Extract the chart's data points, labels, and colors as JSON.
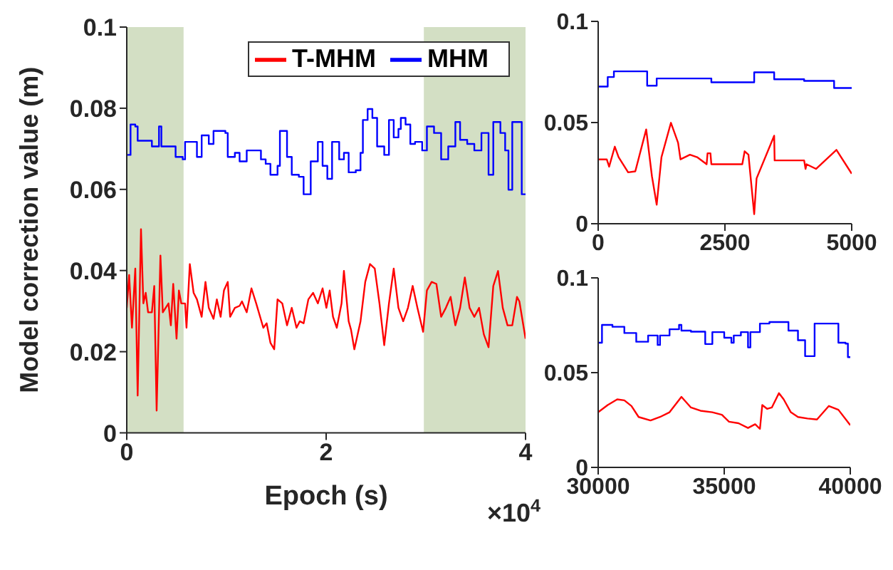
{
  "chart_data": [
    {
      "type": "line",
      "xlabel": "Epoch (s)",
      "ylabel": "Model correction value (m)",
      "xlim": [
        0,
        4
      ],
      "xticks": [
        0,
        2,
        4
      ],
      "ylim": [
        0,
        0.1
      ],
      "yticks": [
        0,
        0.02,
        0.04,
        0.06,
        0.08,
        0.1
      ],
      "legend": "top right",
      "annotations": [
        "×10$^{4}$"
      ],
      "bands": [
        {
          "axis": "x",
          "from": 0,
          "to": 0.57,
          "label": null,
          "color": "#d3dfc4"
        },
        {
          "axis": "x",
          "from": 2.98,
          "to": 4,
          "label": null,
          "color": "#d3dfc4"
        }
      ],
      "series": [
        {
          "name": "T-MHM",
          "type": "line",
          "color": "#ff0000",
          "x": [
            0,
            0.0238,
            0.0523,
            0.0856,
            0.1094,
            0.1427,
            0.1665,
            0.1902,
            0.214,
            0.2521,
            0.2758,
            0.2996,
            0.3377,
            0.3615,
            0.4185,
            0.4423,
            0.4661,
            0.4994,
            0.5232,
            0.5469,
            0.585,
            0.5993,
            0.6325,
            0.6706,
            0.7039,
            0.7514,
            0.7895,
            0.8228,
            0.8703,
            0.9036,
            0.9417,
            0.975,
            1.013,
            1.0368,
            1.0844,
            1.1319,
            1.1557,
            1.2033,
            1.2508,
            1.2984,
            1.3697,
            1.403,
            1.4411,
            1.4791,
            1.5124,
            1.56,
            1.6075,
            1.6551,
            1.7026,
            1.7359,
            1.774,
            1.8216,
            1.8691,
            1.9167,
            1.9642,
            2.0023,
            2.0355,
            2.0688,
            2.1069,
            2.1545,
            2.1783,
            2.2258,
            2.2496,
            2.2829,
            2.3447,
            2.3922,
            2.4398,
            2.4874,
            2.5349,
            2.5825,
            2.6301,
            2.6777,
            2.7252,
            2.7728,
            2.8204,
            2.8679,
            2.9155,
            2.9726,
            3.0106,
            3.0582,
            3.1058,
            3.1533,
            3.2008,
            3.2484,
            3.296,
            3.3436,
            3.3911,
            3.4387,
            3.4862,
            3.5338,
            3.5814,
            3.6289,
            3.6765,
            3.724,
            3.7716,
            3.8192,
            3.8668,
            3.9143,
            3.9381,
            4
          ],
          "values": [
            0.0308,
            0.0389,
            0.0259,
            0.0405,
            0.0092,
            0.0502,
            0.0319,
            0.0345,
            0.0297,
            0.0297,
            0.0362,
            0.0055,
            0.0437,
            0.0297,
            0.0319,
            0.0265,
            0.0367,
            0.0232,
            0.0351,
            0.0319,
            0.0319,
            0.0259,
            0.0416,
            0.0345,
            0.0329,
            0.0286,
            0.0372,
            0.0308,
            0.0281,
            0.0329,
            0.0286,
            0.0351,
            0.0372,
            0.0286,
            0.0308,
            0.0313,
            0.0324,
            0.0297,
            0.0356,
            0.0319,
            0.0259,
            0.027,
            0.0222,
            0.0206,
            0.0329,
            0.0319,
            0.0265,
            0.0308,
            0.0259,
            0.0275,
            0.027,
            0.0329,
            0.0345,
            0.0319,
            0.0356,
            0.0308,
            0.0351,
            0.0286,
            0.0259,
            0.0319,
            0.0399,
            0.0275,
            0.0254,
            0.0206,
            0.0275,
            0.0372,
            0.0416,
            0.0405,
            0.0319,
            0.0216,
            0.0319,
            0.0405,
            0.0308,
            0.0275,
            0.0308,
            0.0362,
            0.0308,
            0.0249,
            0.0351,
            0.0372,
            0.0367,
            0.0286,
            0.0308,
            0.0335,
            0.0265,
            0.0308,
            0.0383,
            0.0308,
            0.0286,
            0.0308,
            0.0243,
            0.0211,
            0.0362,
            0.0399,
            0.0308,
            0.0265,
            0.0265,
            0.0335,
            0.0324,
            0.0232
          ]
        },
        {
          "name": "MHM",
          "type": "step",
          "color": "#0000ff",
          "x": [
            0,
            0.038,
            0.0856,
            0.1094,
            0.1807,
            0.2521,
            0.3234,
            0.3472,
            0.4661,
            0.4899,
            0.5612,
            0.585,
            0.6563,
            0.7039,
            0.7514,
            0.8228,
            0.8703,
            0.9892,
            1.013,
            1.0844,
            1.1319,
            1.2033,
            1.2984,
            1.3459,
            1.3935,
            1.4411,
            1.5124,
            1.5362,
            1.6075,
            1.6551,
            1.7264,
            1.774,
            1.8453,
            1.9167,
            1.9642,
            2.0118,
            2.0593,
            2.1307,
            2.1783,
            2.2258,
            2.2972,
            2.3447,
            2.3685,
            2.4161,
            2.4636,
            2.5112,
            2.5825,
            2.6301,
            2.6777,
            2.7252,
            2.749,
            2.7966,
            2.8442,
            2.8917,
            2.9631,
            3.0106,
            3.082,
            3.1533,
            3.2247,
            3.296,
            3.3436,
            3.4149,
            3.4862,
            3.5576,
            3.6289,
            3.6765,
            3.7478,
            3.7954,
            3.8287,
            3.8668,
            3.9381,
            3.9619,
            4
          ],
          "values": [
            0.0685,
            0.076,
            0.0755,
            0.072,
            0.072,
            0.0706,
            0.0755,
            0.0706,
            0.0706,
            0.068,
            0.0674,
            0.0717,
            0.0717,
            0.068,
            0.0733,
            0.0712,
            0.0744,
            0.0739,
            0.068,
            0.069,
            0.0669,
            0.0696,
            0.0696,
            0.0674,
            0.0663,
            0.0636,
            0.0658,
            0.0744,
            0.068,
            0.0636,
            0.0631,
            0.0588,
            0.0669,
            0.0717,
            0.0658,
            0.0626,
            0.0717,
            0.0674,
            0.069,
            0.0642,
            0.0647,
            0.069,
            0.0771,
            0.0798,
            0.0776,
            0.0706,
            0.0685,
            0.0771,
            0.0728,
            0.0749,
            0.0776,
            0.076,
            0.0712,
            0.0717,
            0.0696,
            0.0755,
            0.0739,
            0.0674,
            0.0706,
            0.0766,
            0.0722,
            0.0712,
            0.0696,
            0.0739,
            0.0636,
            0.0766,
            0.0739,
            0.0696,
            0.0599,
            0.0766,
            0.0766,
            0.0588,
            0.0588
          ]
        }
      ]
    },
    {
      "type": "line",
      "xlim": [
        0,
        5000
      ],
      "xticks": [
        0,
        2500,
        5000
      ],
      "ylim": [
        0,
        0.1
      ],
      "yticks": [
        0,
        0.05,
        0.1
      ],
      "series": [
        {
          "type": "line",
          "color": "#ff0000",
          "x": [
            0,
            169,
            216,
            328,
            403,
            591,
            732,
            947,
            1060,
            1154,
            1248,
            1435,
            1576,
            1623,
            1810,
            1951,
            2139,
            2157,
            2214,
            2232,
            2842,
            2889,
            2964,
            3077,
            3124,
            3471,
            3480,
            4062,
            4090,
            4109,
            4296,
            4699,
            5000
          ],
          "values": [
            0.0318,
            0.0318,
            0.0282,
            0.0381,
            0.0329,
            0.0254,
            0.0259,
            0.0466,
            0.0235,
            0.0094,
            0.0329,
            0.0499,
            0.04,
            0.0318,
            0.0341,
            0.0329,
            0.0294,
            0.0348,
            0.0348,
            0.0294,
            0.0294,
            0.0358,
            0.0341,
            0.0047,
            0.0224,
            0.0435,
            0.0313,
            0.0313,
            0.0271,
            0.0294,
            0.0271,
            0.0365,
            0.0247
          ]
        },
        {
          "type": "step",
          "color": "#0000ff",
          "x": [
            0,
            188,
            310,
            966,
            1154,
            2232,
            3077,
            3471,
            4062,
            4653,
            5000
          ],
          "values": [
            0.0678,
            0.0725,
            0.0753,
            0.0682,
            0.0718,
            0.0699,
            0.0748,
            0.0714,
            0.0706,
            0.0671,
            0.0671
          ]
        }
      ]
    },
    {
      "type": "line",
      "xlim": [
        30000,
        40000
      ],
      "xticks": [
        30000,
        35000,
        40000
      ],
      "ylim": [
        0,
        0.1
      ],
      "yticks": [
        0,
        0.05,
        0.1
      ],
      "series": [
        {
          "type": "line",
          "color": "#ff0000",
          "x": [
            30000,
            30377,
            30755,
            31038,
            31321,
            31604,
            32076,
            32453,
            32831,
            33302,
            33680,
            34057,
            34529,
            34906,
            35189,
            35566,
            35944,
            36227,
            36416,
            36510,
            36699,
            36888,
            37170,
            37359,
            37642,
            37925,
            38302,
            38679,
            39151,
            39529,
            40000
          ],
          "values": [
            0.0291,
            0.0329,
            0.0359,
            0.0354,
            0.0324,
            0.0266,
            0.0248,
            0.0266,
            0.0291,
            0.0372,
            0.0316,
            0.0299,
            0.0291,
            0.0278,
            0.0241,
            0.0233,
            0.0208,
            0.0228,
            0.0203,
            0.0329,
            0.0309,
            0.0316,
            0.0392,
            0.0359,
            0.0291,
            0.0266,
            0.0258,
            0.0253,
            0.0324,
            0.0304,
            0.0223
          ]
        },
        {
          "type": "step",
          "color": "#0000ff",
          "x": [
            30000,
            30151,
            30566,
            31038,
            31510,
            31981,
            32359,
            32453,
            32831,
            33208,
            33302,
            33680,
            34246,
            34529,
            35000,
            35284,
            35378,
            35661,
            35944,
            36038,
            36416,
            36793,
            37453,
            37548,
            37925,
            38208,
            38491,
            38585,
            39434,
            39529,
            39812,
            39906,
            40000
          ],
          "values": [
            0.0658,
            0.0752,
            0.0742,
            0.0709,
            0.0663,
            0.0696,
            0.0646,
            0.0696,
            0.0729,
            0.0752,
            0.0722,
            0.0716,
            0.0651,
            0.0714,
            0.0684,
            0.0658,
            0.0696,
            0.0714,
            0.0633,
            0.0714,
            0.0759,
            0.0767,
            0.0767,
            0.0722,
            0.0671,
            0.0587,
            0.0587,
            0.0759,
            0.0759,
            0.0658,
            0.0653,
            0.0582,
            0.0582
          ]
        }
      ]
    }
  ]
}
